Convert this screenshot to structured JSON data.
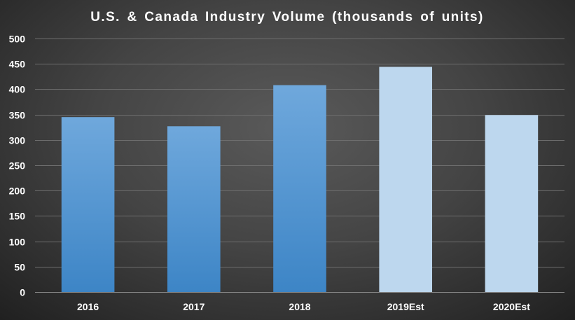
{
  "chart_data": {
    "type": "bar",
    "title": "U.S. & Canada  Industry  Volume  (thousands  of  units)",
    "xlabel": "",
    "ylabel": "",
    "categories": [
      "2016",
      "2017",
      "2018",
      "2019Est",
      "2020Est"
    ],
    "values": [
      345,
      327,
      408,
      444,
      349
    ],
    "estimated": [
      false,
      false,
      false,
      true,
      true
    ],
    "ylim": [
      0,
      500
    ],
    "yticks": [
      0,
      50,
      100,
      150,
      200,
      250,
      300,
      350,
      400,
      450,
      500
    ],
    "grid": true,
    "legend": "none"
  },
  "colors": {
    "actual_bar_top": "#6fa8dc",
    "actual_bar_bottom": "#3d85c6",
    "estimate_bar": "#bdd7ee",
    "background": "#444444",
    "text": "#ffffff"
  }
}
